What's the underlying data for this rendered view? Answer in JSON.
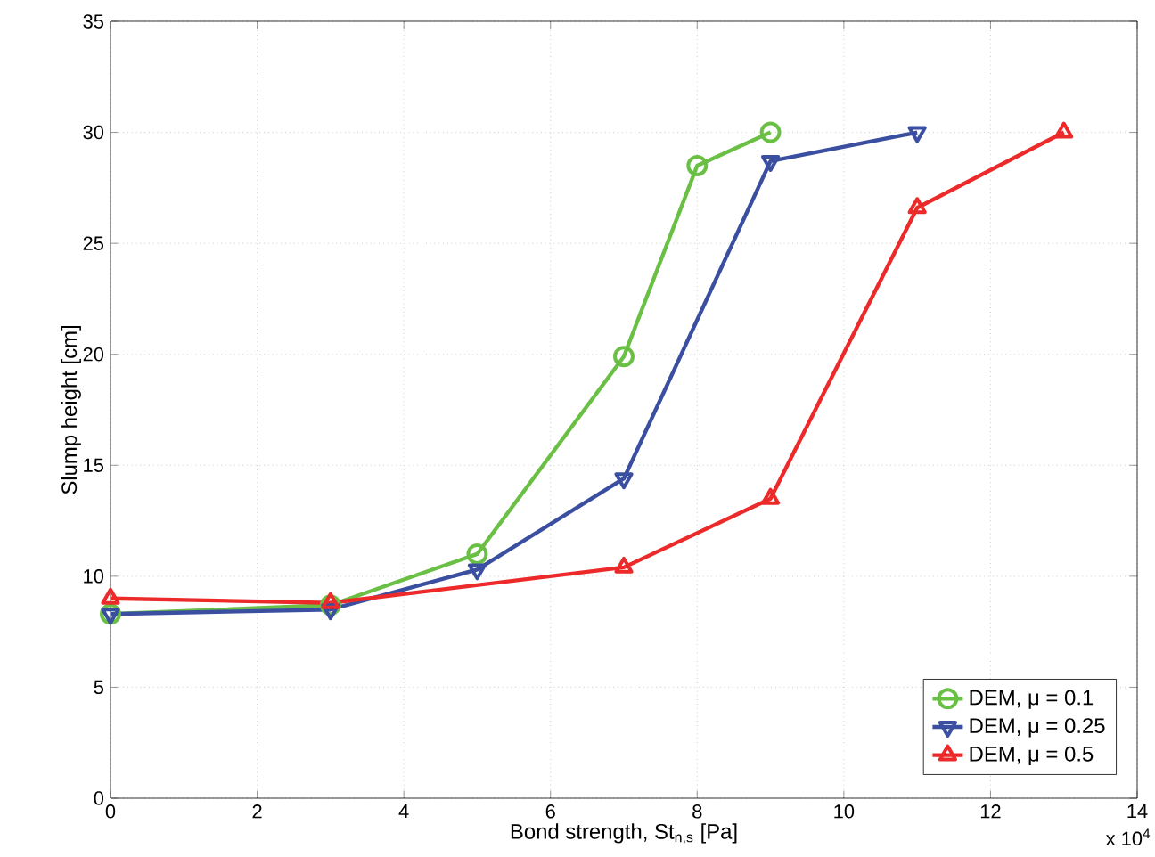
{
  "chart_data": {
    "type": "line",
    "xlabel": "Bond strength, St$_{n,s}$ [Pa]",
    "ylabel": "Slump height [cm]",
    "xlim": [
      0,
      14
    ],
    "xticks": [
      0,
      2,
      4,
      6,
      8,
      10,
      12,
      14
    ],
    "ylim": [
      0,
      35
    ],
    "yticks": [
      0,
      5,
      10,
      15,
      20,
      25,
      30,
      35
    ],
    "grid": true,
    "legend": "bottom right",
    "line_style": "solid",
    "annotations": [
      "x 10$^{4}$"
    ],
    "series": [
      {
        "name": "DEM, μ = 0.1",
        "color": "#6abf45",
        "marker": "circle",
        "x": [
          0,
          3,
          5,
          7,
          8,
          9
        ],
        "values": [
          8.3,
          8.7,
          11,
          19.9,
          28.5,
          30
        ]
      },
      {
        "name": "DEM, μ = 0.25",
        "color": "#3b4fa1",
        "marker": "triangle-down",
        "x": [
          0,
          3,
          5,
          7,
          9,
          11
        ],
        "values": [
          8.3,
          8.5,
          10.3,
          14.4,
          28.7,
          30
        ]
      },
      {
        "name": "DEM, μ = 0.5",
        "color": "#ec2a2a",
        "marker": "triangle",
        "x": [
          0,
          3,
          7,
          9,
          11,
          13
        ],
        "values": [
          9,
          8.8,
          10.4,
          13.5,
          26.6,
          30
        ]
      }
    ]
  }
}
